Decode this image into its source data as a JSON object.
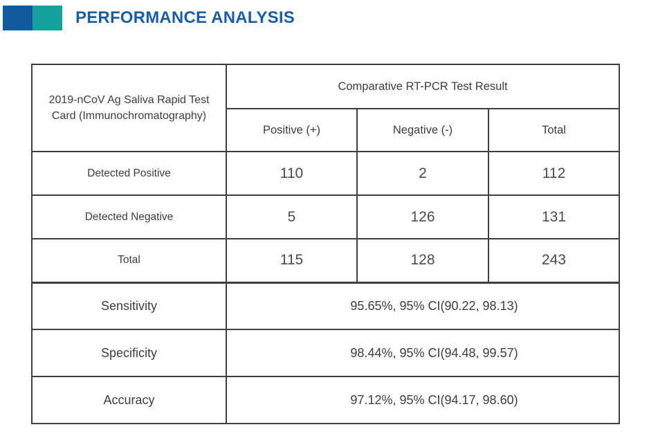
{
  "header": {
    "title": "PERFORMANCE ANALYSIS",
    "title_color": "#1b5ca8",
    "logo_colors": {
      "blue": "#12599e",
      "teal": "#14a39a"
    }
  },
  "table": {
    "corner_header": "2019-nCoV Ag Saliva Rapid Test Card (Immunochromatography)",
    "group_header": "Comparative RT-PCR Test Result",
    "column_headers": [
      "Positive (+)",
      "Negative (-)",
      "Total"
    ],
    "rows": [
      {
        "label": "Detected Positive",
        "values": [
          "110",
          "2",
          "112"
        ]
      },
      {
        "label": "Detected Negative",
        "values": [
          "5",
          "126",
          "131"
        ]
      },
      {
        "label": "Total",
        "values": [
          "115",
          "128",
          "243"
        ]
      }
    ],
    "stats": [
      {
        "label": "Sensitivity",
        "value": "95.65%, 95% CI(90.22, 98.13)"
      },
      {
        "label": "Specificity",
        "value": "98.44%, 95% CI(94.48, 99.57)"
      },
      {
        "label": "Accuracy",
        "value": "97.12%, 95% CI(94.17, 98.60)"
      }
    ],
    "border_color": "#3e3e3e"
  }
}
